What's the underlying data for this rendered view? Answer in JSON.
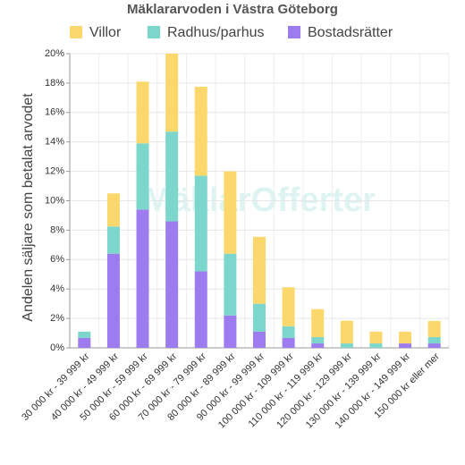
{
  "chart_data": {
    "type": "bar",
    "stacked": true,
    "title": "Mäklararvoden i Västra Göteborg",
    "y_label": "Andelen säljare som betalat arvodet",
    "watermark": "MäklarOfferter",
    "categories": [
      "30 000 kr - 39 999 kr",
      "40 000 kr - 49 999 kr",
      "50 000 kr - 59 999 kr",
      "60 000 kr - 69 999 kr",
      "70 000 kr - 79 999 kr",
      "80 000 kr - 89 999 kr",
      "90 000 kr - 99 999 kr",
      "100 000 kr - 109 999 kr",
      "110 000 kr - 119 999 kr",
      "120 000 kr - 129 999 kr",
      "130 000 kr - 139 999 kr",
      "140 000 kr - 149 999 kr",
      "150 000 kr eller mer"
    ],
    "series": [
      {
        "name": "Bostadsrätter",
        "color": "#9d7cf0",
        "values": [
          0.67,
          6.4,
          9.4,
          8.6,
          5.2,
          2.2,
          1.1,
          0.67,
          0.3,
          0,
          0,
          0.3,
          0.3
        ]
      },
      {
        "name": "Radhus/parhus",
        "color": "#7dd6cc",
        "values": [
          0.43,
          1.85,
          4.5,
          6.1,
          6.5,
          4.2,
          1.9,
          0.8,
          0.43,
          0.3,
          0.3,
          0,
          0.43
        ]
      },
      {
        "name": "Villor",
        "color": "#fcd86c",
        "values": [
          0,
          2.25,
          4.2,
          5.3,
          6.05,
          5.6,
          4.55,
          2.65,
          1.9,
          1.55,
          0.8,
          0.8,
          1.1
        ]
      }
    ],
    "legend_order": [
      2,
      1,
      0
    ],
    "ylim": [
      0,
      20
    ],
    "yticks": [
      {
        "value": 0,
        "label": "0%"
      },
      {
        "value": 2,
        "label": "2%"
      },
      {
        "value": 4,
        "label": "4%"
      },
      {
        "value": 6,
        "label": "6%"
      },
      {
        "value": 8,
        "label": "8%"
      },
      {
        "value": 10,
        "label": "10%"
      },
      {
        "value": 12,
        "label": "12%"
      },
      {
        "value": 14,
        "label": "14%"
      },
      {
        "value": 16,
        "label": "16%"
      },
      {
        "value": 18,
        "label": "18%"
      },
      {
        "value": 20,
        "label": "20%"
      }
    ],
    "grid": true
  }
}
